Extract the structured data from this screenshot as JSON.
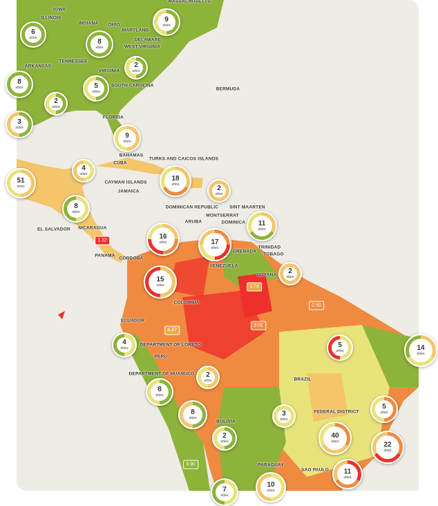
{
  "map": {
    "colors": {
      "water": "#efece6",
      "low": "#8db33a",
      "mid_low": "#e8e37a",
      "mid": "#f4c56a",
      "high": "#f08a40",
      "very_high": "#ee2f2b"
    },
    "places": [
      "IOWA",
      "ILLINOIS",
      "INDIANA",
      "OHIO",
      "MASSACHUSETTS",
      "MARYLAND",
      "DELAWARE",
      "WEST VIRGINIA",
      "VIRGINIA",
      "TENNESSEE",
      "ARKANSAS",
      "SOUTH CAROLINA",
      "FLORIDA",
      "BAHAMAS",
      "CUBA",
      "CAYMAN ISLANDS",
      "JAMAICA",
      "TURKS AND CAICOS ISLANDS",
      "DOMINICAN REPUBLIC",
      "BERMUDA",
      "SINT MAARTEN",
      "MONTSERRAT",
      "DOMINICA",
      "GRENADA",
      "TRINIDAD",
      "TOBAGO",
      "ARUBA",
      "NICARAGUA",
      "PANAMA",
      "CORDOBA",
      "VENEZUELA",
      "COLOMBIA",
      "GUYANA",
      "ECUADOR",
      "DEPARTMENT OF LORETO",
      "PERU",
      "DEPARTMENT OF HUANUCO",
      "BRAZIL",
      "BOLIVIA",
      "FEDERAL DISTRICT",
      "SAO PAULO",
      "PARAGUAY",
      "EL SALVADOR"
    ],
    "cluster_unit": "sites",
    "clusters": [
      {
        "count": "9",
        "ring": [
          "#8db33a",
          "#e8e37a"
        ]
      },
      {
        "count": "6",
        "ring": [
          "#8db33a"
        ]
      },
      {
        "count": "8",
        "ring": [
          "#8db33a"
        ]
      },
      {
        "count": "2",
        "ring": [
          "#8db33a",
          "#e8e37a"
        ]
      },
      {
        "count": "8",
        "ring": [
          "#8db33a"
        ]
      },
      {
        "count": "5",
        "ring": [
          "#8db33a",
          "#e8e37a"
        ]
      },
      {
        "count": "2",
        "ring": [
          "#8db33a",
          "#e8e37a"
        ]
      },
      {
        "count": "3",
        "ring": [
          "#8db33a",
          "#f4c56a"
        ]
      },
      {
        "count": "9",
        "ring": [
          "#f4c56a",
          "#e8e37a"
        ]
      },
      {
        "count": "4",
        "ring": [
          "#e8e37a",
          "#f4c56a"
        ]
      },
      {
        "count": "51",
        "ring": [
          "#f4c56a",
          "#e8e37a"
        ]
      },
      {
        "count": "18",
        "ring": [
          "#f4c56a",
          "#f08a40",
          "#e8e37a"
        ]
      },
      {
        "count": "2",
        "ring": [
          "#f4c56a"
        ]
      },
      {
        "count": "8",
        "ring": [
          "#e8e37a",
          "#8db33a"
        ]
      },
      {
        "count": "11",
        "ring": [
          "#f4c56a",
          "#8db33a",
          "#e8e37a"
        ]
      },
      {
        "count": "16",
        "ring": [
          "#f4c56a",
          "#f08a40",
          "#ee2f2b",
          "#e8e37a"
        ]
      },
      {
        "count": "17",
        "ring": [
          "#f08a40",
          "#ee2f2b",
          "#e8e37a",
          "#f4c56a"
        ]
      },
      {
        "count": "15",
        "ring": [
          "#f4c56a",
          "#ee2f2b"
        ]
      },
      {
        "count": "2",
        "ring": [
          "#f4c56a"
        ]
      },
      {
        "count": "4",
        "ring": [
          "#e8e37a",
          "#8db33a"
        ]
      },
      {
        "count": "5",
        "ring": [
          "#e8e37a",
          "#ee2f2b"
        ]
      },
      {
        "count": "14",
        "ring": [
          "#f4c56a",
          "#e8e37a",
          "#8db33a"
        ]
      },
      {
        "count": "2",
        "ring": [
          "#f4c56a",
          "#e8e37a"
        ]
      },
      {
        "count": "8",
        "ring": [
          "#8db33a",
          "#e8e37a"
        ]
      },
      {
        "count": "8",
        "ring": [
          "#8db33a",
          "#f4c56a"
        ]
      },
      {
        "count": "3",
        "ring": [
          "#e8e37a"
        ]
      },
      {
        "count": "5",
        "ring": [
          "#f08a40",
          "#e8e37a"
        ]
      },
      {
        "count": "40",
        "ring": [
          "#f08a40",
          "#f4c56a",
          "#e8e37a"
        ]
      },
      {
        "count": "22",
        "ring": [
          "#f08a40",
          "#ee2f2b",
          "#f4c56a"
        ]
      },
      {
        "count": "2",
        "ring": [
          "#8db33a",
          "#e8e37a"
        ]
      },
      {
        "count": "11",
        "ring": [
          "#ee2f2b",
          "#f08a40",
          "#f4c56a"
        ]
      },
      {
        "count": "10",
        "ring": [
          "#e8e37a",
          "#f4c56a"
        ]
      },
      {
        "count": "7",
        "ring": [
          "#e8e37a",
          "#8db33a"
        ]
      }
    ],
    "price_flags": [
      {
        "value": "1.32",
        "color": "#ee2f2b"
      },
      {
        "value": "4.74",
        "color": "#f0a845"
      },
      {
        "value": "2.50",
        "color": "#f08a40"
      },
      {
        "value": "4.47",
        "color": "#f0a845"
      },
      {
        "value": "3.02",
        "color": "#f08a40"
      },
      {
        "value": "9.90",
        "color": "#8db33a"
      }
    ]
  }
}
